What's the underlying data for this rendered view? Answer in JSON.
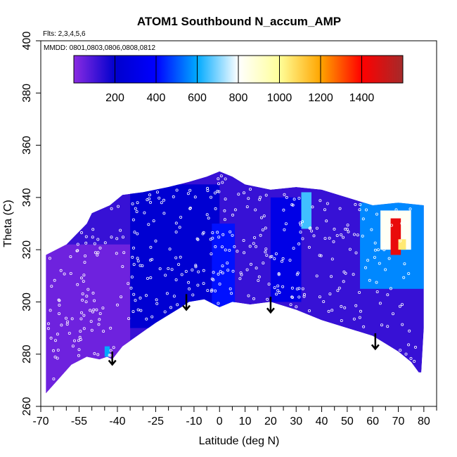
{
  "chart_data": {
    "type": "heatmap",
    "title": "ATOM1 Southbound N_accum_AMP",
    "flights_note": "Flts: 2,3,4,5,6",
    "dates_note": "MMDD: 0801,0803,0806,0808,0812",
    "xlabel": "Latitude (deg N)",
    "ylabel": "Theta (C)",
    "xlim": [
      -70,
      85
    ],
    "ylim": [
      260,
      400
    ],
    "x_ticks_major": [
      -70,
      -55,
      -40,
      -25,
      -10,
      0,
      10,
      20,
      30,
      40,
      50,
      60,
      70,
      80
    ],
    "x_ticks_minor": [
      -65,
      -60,
      -50,
      -45,
      -35,
      -30,
      -20,
      -15,
      -5,
      5,
      15,
      25,
      35,
      45,
      55,
      65,
      75,
      85
    ],
    "y_ticks": [
      260,
      280,
      300,
      320,
      340,
      360,
      380,
      400
    ],
    "colorbar": {
      "range": [
        0,
        1600
      ],
      "ticks": [
        200,
        400,
        600,
        800,
        1000,
        1200,
        1400
      ],
      "stops": [
        {
          "v": 0,
          "c": "#8a2be2"
        },
        {
          "v": 200,
          "c": "#0000cd"
        },
        {
          "v": 400,
          "c": "#0000ff"
        },
        {
          "v": 600,
          "c": "#00aaff"
        },
        {
          "v": 800,
          "c": "#ffffff"
        },
        {
          "v": 1000,
          "c": "#ffff99"
        },
        {
          "v": 1200,
          "c": "#ffa500"
        },
        {
          "v": 1400,
          "c": "#ff0000"
        },
        {
          "v": 1600,
          "c": "#a52a2a"
        }
      ]
    },
    "field_lower_boundary": [
      [
        -68,
        265
      ],
      [
        -58,
        276
      ],
      [
        -52,
        279
      ],
      [
        -47,
        278
      ],
      [
        -44,
        279
      ],
      [
        -42,
        278
      ],
      [
        -38,
        283
      ],
      [
        -25,
        292
      ],
      [
        -15,
        298
      ],
      [
        -12,
        300
      ],
      [
        -6,
        301
      ],
      [
        0,
        298
      ],
      [
        5,
        300
      ],
      [
        12,
        299
      ],
      [
        20,
        300
      ],
      [
        30,
        297
      ],
      [
        40,
        293
      ],
      [
        50,
        290
      ],
      [
        60,
        287
      ],
      [
        65,
        284
      ],
      [
        70,
        281
      ],
      [
        75,
        277
      ],
      [
        78,
        273
      ]
    ],
    "field_upper_boundary": [
      [
        -68,
        318
      ],
      [
        -60,
        322
      ],
      [
        -52,
        330
      ],
      [
        -50,
        334
      ],
      [
        -43,
        337
      ],
      [
        -38,
        341
      ],
      [
        -30,
        342
      ],
      [
        -20,
        344
      ],
      [
        -12,
        346
      ],
      [
        -5,
        348
      ],
      [
        0,
        350
      ],
      [
        5,
        348
      ],
      [
        10,
        345
      ],
      [
        20,
        343
      ],
      [
        30,
        344
      ],
      [
        40,
        343
      ],
      [
        50,
        340
      ],
      [
        60,
        337
      ],
      [
        70,
        338
      ],
      [
        80,
        337
      ],
      [
        80,
        290
      ],
      [
        79,
        273
      ]
    ],
    "regions": [
      {
        "lat": [
          -68,
          -35
        ],
        "theta": [
          265,
          322
        ],
        "value": 40
      },
      {
        "lat": [
          -35,
          0
        ],
        "theta": [
          290,
          345
        ],
        "value": 220
      },
      {
        "lat": [
          -3,
          6
        ],
        "theta": [
          298,
          330
        ],
        "value": 420
      },
      {
        "lat": [
          20,
          32
        ],
        "theta": [
          300,
          340
        ],
        "value": 300
      },
      {
        "lat": [
          32,
          36
        ],
        "theta": [
          328,
          342
        ],
        "value": 650
      },
      {
        "lat": [
          55,
          80
        ],
        "theta": [
          305,
          338
        ],
        "value": 560
      },
      {
        "lat": [
          63,
          75
        ],
        "theta": [
          320,
          335
        ],
        "value": 820
      },
      {
        "lat": [
          67,
          71
        ],
        "theta": [
          318,
          332
        ],
        "value": 1450
      },
      {
        "lat": [
          70,
          73
        ],
        "theta": [
          320,
          324
        ],
        "value": 1050
      },
      {
        "lat": [
          -45,
          -43
        ],
        "theta": [
          279,
          283
        ],
        "value": 600
      }
    ],
    "arrows": [
      {
        "lat": -42,
        "theta": 281,
        "length": 5
      },
      {
        "lat": -13,
        "theta": 303,
        "length": 6
      },
      {
        "lat": 20,
        "theta": 302,
        "length": 6
      },
      {
        "lat": 61,
        "theta": 288,
        "length": 6
      }
    ]
  }
}
